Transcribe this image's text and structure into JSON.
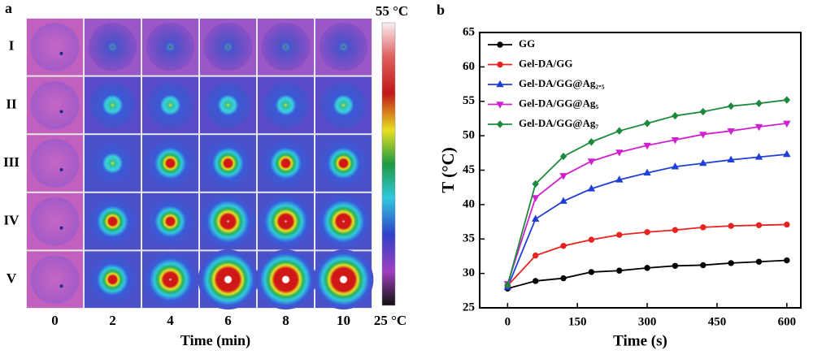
{
  "panel_a": {
    "label": "a",
    "rows": [
      "I",
      "II",
      "III",
      "IV",
      "V"
    ],
    "columns": [
      "0",
      "2",
      "4",
      "6",
      "8",
      "10"
    ],
    "x_label": "Time (min)",
    "colorbar_max": "55 °C",
    "colorbar_min": "25 °C"
  },
  "chart_data": {
    "type": "line",
    "panel_label": "b",
    "x_label": "Time (s)",
    "y_label": "T (°C)",
    "x": [
      0,
      60,
      120,
      180,
      240,
      300,
      360,
      420,
      480,
      540,
      600
    ],
    "xlim": [
      -60,
      630
    ],
    "xticks": [
      0,
      150,
      300,
      450,
      600
    ],
    "ylim": [
      25,
      65
    ],
    "yticks": [
      25,
      30,
      35,
      40,
      45,
      50,
      55,
      60,
      65
    ],
    "legend": "upper left",
    "series": [
      {
        "name": "GG",
        "color": "#000000",
        "marker": "circle",
        "values": [
          27.8,
          28.9,
          29.3,
          30.2,
          30.4,
          30.8,
          31.1,
          31.2,
          31.5,
          31.7,
          31.9
        ]
      },
      {
        "name": "Gel-DA/GG",
        "color": "#e8231f",
        "marker": "circle",
        "values": [
          28.2,
          32.6,
          34.0,
          34.9,
          35.6,
          36.0,
          36.3,
          36.7,
          36.9,
          37.0,
          37.1
        ]
      },
      {
        "name": "Gel-DA/GG@Ag₂.₅",
        "color": "#1f3fd6",
        "marker": "triangle-up",
        "values": [
          28.0,
          37.9,
          40.5,
          42.3,
          43.6,
          44.6,
          45.5,
          46.0,
          46.5,
          46.9,
          47.3
        ]
      },
      {
        "name": "Gel-DA/GG@Ag₅",
        "color": "#d021d0",
        "marker": "triangle-down",
        "values": [
          28.5,
          41.0,
          44.2,
          46.3,
          47.6,
          48.6,
          49.4,
          50.2,
          50.7,
          51.3,
          51.8
        ]
      },
      {
        "name": "Gel-DA/GG@Ag₇",
        "color": "#1c8a3c",
        "marker": "diamond",
        "values": [
          28.3,
          43.0,
          47.0,
          49.1,
          50.7,
          51.8,
          52.9,
          53.5,
          54.3,
          54.7,
          55.2
        ]
      }
    ]
  }
}
